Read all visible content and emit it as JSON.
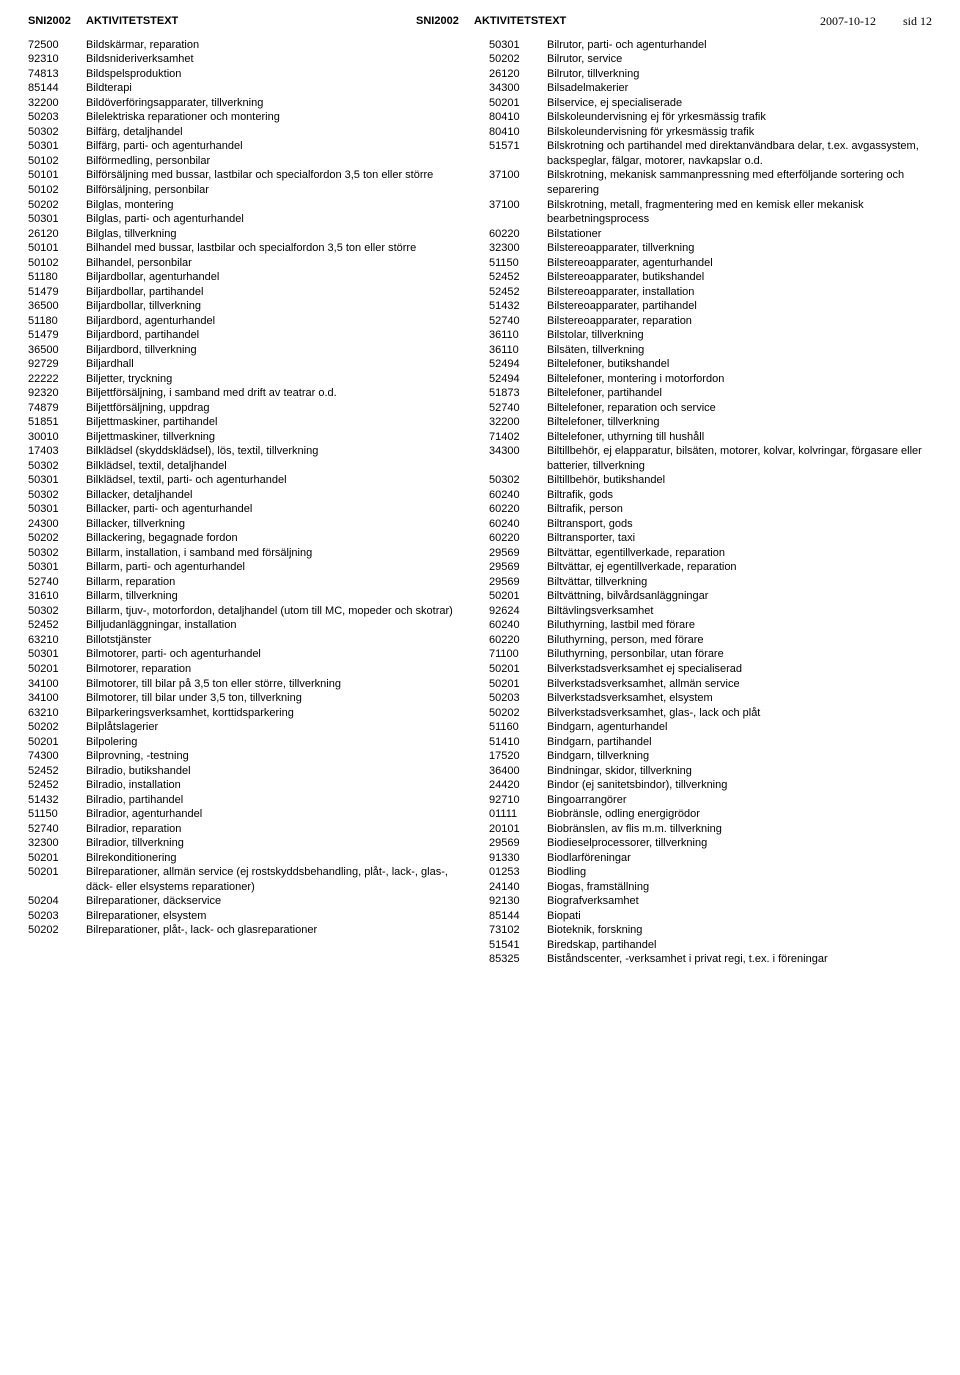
{
  "header": {
    "code_label": "SNI2002",
    "text_label": "AKTIVITETSTEXT",
    "date": "2007-10-12",
    "page": "sid 12"
  },
  "left": [
    {
      "c": "72500",
      "t": "Bildskärmar, reparation"
    },
    {
      "c": "92310",
      "t": "Bildsnideriverksamhet"
    },
    {
      "c": "74813",
      "t": "Bildspelsproduktion"
    },
    {
      "c": "85144",
      "t": "Bildterapi"
    },
    {
      "c": "32200",
      "t": "Bildöverföringsapparater, tillverkning"
    },
    {
      "c": "50203",
      "t": "Bilelektriska reparationer och montering"
    },
    {
      "c": "50302",
      "t": "Bilfärg, detaljhandel"
    },
    {
      "c": "50301",
      "t": "Bilfärg, parti- och agenturhandel"
    },
    {
      "c": "50102",
      "t": "Bilförmedling, personbilar"
    },
    {
      "c": "50101",
      "t": "Bilförsäljning med bussar, lastbilar och specialfordon 3,5 ton eller större"
    },
    {
      "c": "50102",
      "t": "Bilförsäljning, personbilar"
    },
    {
      "c": "50202",
      "t": "Bilglas, montering"
    },
    {
      "c": "50301",
      "t": "Bilglas, parti- och agenturhandel"
    },
    {
      "c": "26120",
      "t": "Bilglas, tillverkning"
    },
    {
      "c": "50101",
      "t": "Bilhandel med bussar, lastbilar och specialfordon 3,5 ton eller större"
    },
    {
      "c": "50102",
      "t": "Bilhandel, personbilar"
    },
    {
      "c": "51180",
      "t": "Biljardbollar, agenturhandel"
    },
    {
      "c": "51479",
      "t": "Biljardbollar, partihandel"
    },
    {
      "c": "36500",
      "t": "Biljardbollar, tillverkning"
    },
    {
      "c": "51180",
      "t": "Biljardbord, agenturhandel"
    },
    {
      "c": "51479",
      "t": "Biljardbord, partihandel"
    },
    {
      "c": "36500",
      "t": "Biljardbord, tillverkning"
    },
    {
      "c": "92729",
      "t": "Biljardhall"
    },
    {
      "c": "22222",
      "t": "Biljetter, tryckning"
    },
    {
      "c": "92320",
      "t": "Biljettförsäljning, i samband med drift av teatrar o.d."
    },
    {
      "c": "74879",
      "t": "Biljettförsäljning, uppdrag"
    },
    {
      "c": "51851",
      "t": "Biljettmaskiner, partihandel"
    },
    {
      "c": "30010",
      "t": "Biljettmaskiner, tillverkning"
    },
    {
      "c": "17403",
      "t": "Bilklädsel (skyddsklädsel), lös, textil, tillverkning"
    },
    {
      "c": "50302",
      "t": "Bilklädsel, textil, detaljhandel"
    },
    {
      "c": "50301",
      "t": "Bilklädsel, textil, parti- och agenturhandel"
    },
    {
      "c": "50302",
      "t": "Billacker, detaljhandel"
    },
    {
      "c": "50301",
      "t": "Billacker, parti- och agenturhandel"
    },
    {
      "c": "24300",
      "t": "Billacker, tillverkning"
    },
    {
      "c": "50202",
      "t": "Billackering, begagnade fordon"
    },
    {
      "c": "50302",
      "t": "Billarm, installation, i samband med försäljning"
    },
    {
      "c": "50301",
      "t": "Billarm, parti- och agenturhandel"
    },
    {
      "c": "52740",
      "t": "Billarm, reparation"
    },
    {
      "c": "31610",
      "t": "Billarm, tillverkning"
    },
    {
      "c": "50302",
      "t": "Billarm, tjuv-, motorfordon, detaljhandel (utom till MC, mopeder och skotrar)"
    },
    {
      "c": "52452",
      "t": "Billjudanläggningar, installation"
    },
    {
      "c": "63210",
      "t": "Billotstjänster"
    },
    {
      "c": "50301",
      "t": "Bilmotorer, parti- och agenturhandel"
    },
    {
      "c": "50201",
      "t": "Bilmotorer, reparation"
    },
    {
      "c": "34100",
      "t": "Bilmotorer, till bilar på 3,5 ton eller större, tillverkning"
    },
    {
      "c": "34100",
      "t": "Bilmotorer, till bilar under 3,5 ton, tillverkning"
    },
    {
      "c": "63210",
      "t": "Bilparkeringsverksamhet, korttidsparkering"
    },
    {
      "c": "50202",
      "t": "Bilplåtslagerier"
    },
    {
      "c": "50201",
      "t": "Bilpolering"
    },
    {
      "c": "74300",
      "t": "Bilprovning, -testning"
    },
    {
      "c": "52452",
      "t": "Bilradio, butikshandel"
    },
    {
      "c": "52452",
      "t": "Bilradio, installation"
    },
    {
      "c": "51432",
      "t": "Bilradio, partihandel"
    },
    {
      "c": "51150",
      "t": "Bilradior, agenturhandel"
    },
    {
      "c": "52740",
      "t": "Bilradior, reparation"
    },
    {
      "c": "32300",
      "t": "Bilradior, tillverkning"
    },
    {
      "c": "50201",
      "t": "Bilrekonditionering"
    },
    {
      "c": "50201",
      "t": "Bilreparationer, allmän service (ej rostskyddsbehandling, plåt-, lack-, glas-, däck- eller elsystems reparationer)"
    },
    {
      "c": "50204",
      "t": "Bilreparationer, däckservice"
    },
    {
      "c": "50203",
      "t": "Bilreparationer, elsystem"
    },
    {
      "c": "50202",
      "t": "Bilreparationer, plåt-, lack- och glasreparationer"
    }
  ],
  "right": [
    {
      "c": "50301",
      "t": "Bilrutor, parti- och agenturhandel"
    },
    {
      "c": "50202",
      "t": "Bilrutor, service"
    },
    {
      "c": "26120",
      "t": "Bilrutor, tillverkning"
    },
    {
      "c": "34300",
      "t": "Bilsadelmakerier"
    },
    {
      "c": "50201",
      "t": "Bilservice, ej specialiserade"
    },
    {
      "c": "80410",
      "t": "Bilskoleundervisning ej för yrkesmässig trafik"
    },
    {
      "c": "80410",
      "t": "Bilskoleundervisning för yrkesmässig trafik"
    },
    {
      "c": "51571",
      "t": "Bilskrotning och partihandel med direktanvändbara delar, t.ex. avgassystem, backspeglar, fälgar, motorer, navkapslar o.d."
    },
    {
      "c": "37100",
      "t": "Bilskrotning, mekanisk sammanpressning med efterföljande sortering och separering"
    },
    {
      "c": "37100",
      "t": "Bilskrotning, metall, fragmentering med en kemisk eller mekanisk bearbetningsprocess"
    },
    {
      "c": "60220",
      "t": "Bilstationer"
    },
    {
      "c": "32300",
      "t": "Bilstereoapparater, tillverkning"
    },
    {
      "c": "51150",
      "t": "Bilstereoapparater, agenturhandel"
    },
    {
      "c": "52452",
      "t": "Bilstereoapparater, butikshandel"
    },
    {
      "c": "52452",
      "t": "Bilstereoapparater, installation"
    },
    {
      "c": "51432",
      "t": "Bilstereoapparater, partihandel"
    },
    {
      "c": "52740",
      "t": "Bilstereoapparater, reparation"
    },
    {
      "c": "36110",
      "t": "Bilstolar, tillverkning"
    },
    {
      "c": "36110",
      "t": "Bilsäten, tillverkning"
    },
    {
      "c": "52494",
      "t": "Biltelefoner, butikshandel"
    },
    {
      "c": "52494",
      "t": "Biltelefoner, montering i motorfordon"
    },
    {
      "c": "51873",
      "t": "Biltelefoner, partihandel"
    },
    {
      "c": "52740",
      "t": "Biltelefoner, reparation och service"
    },
    {
      "c": "32200",
      "t": "Biltelefoner, tillverkning"
    },
    {
      "c": "71402",
      "t": "Biltelefoner, uthyrning till hushåll"
    },
    {
      "c": "34300",
      "t": "Biltillbehör, ej elapparatur, bilsäten, motorer, kolvar, kolvringar, förgasare eller batterier, tillverkning"
    },
    {
      "c": "50302",
      "t": "Biltillbehör, butikshandel"
    },
    {
      "c": "60240",
      "t": "Biltrafik, gods"
    },
    {
      "c": "60220",
      "t": "Biltrafik, person"
    },
    {
      "c": "60240",
      "t": "Biltransport, gods"
    },
    {
      "c": "60220",
      "t": "Biltransporter, taxi"
    },
    {
      "c": "29569",
      "t": "Biltvättar, egentillverkade, reparation"
    },
    {
      "c": "29569",
      "t": "Biltvättar, ej egentillverkade, reparation"
    },
    {
      "c": "29569",
      "t": "Biltvättar, tillverkning"
    },
    {
      "c": "50201",
      "t": "Biltvättning, bilvårdsanläggningar"
    },
    {
      "c": "92624",
      "t": "Biltävlingsverksamhet"
    },
    {
      "c": "60240",
      "t": "Biluthyrning, lastbil med förare"
    },
    {
      "c": "60220",
      "t": "Biluthyrning, person, med förare"
    },
    {
      "c": "71100",
      "t": "Biluthyrning, personbilar, utan förare"
    },
    {
      "c": "50201",
      "t": "Bilverkstadsverksamhet ej specialiserad"
    },
    {
      "c": "50201",
      "t": "Bilverkstadsverksamhet, allmän service"
    },
    {
      "c": "50203",
      "t": "Bilverkstadsverksamhet, elsystem"
    },
    {
      "c": "50202",
      "t": "Bilverkstadsverksamhet, glas-, lack och plåt"
    },
    {
      "c": "51160",
      "t": "Bindgarn, agenturhandel"
    },
    {
      "c": "51410",
      "t": "Bindgarn, partihandel"
    },
    {
      "c": "17520",
      "t": "Bindgarn, tillverkning"
    },
    {
      "c": "36400",
      "t": "Bindningar, skidor, tillverkning"
    },
    {
      "c": "24420",
      "t": "Bindor (ej sanitetsbindor), tillverkning"
    },
    {
      "c": "92710",
      "t": "Bingoarrangörer"
    },
    {
      "c": "01111",
      "t": "Biobränsle, odling energigrödor"
    },
    {
      "c": "20101",
      "t": "Biobränslen, av flis m.m. tillverkning"
    },
    {
      "c": "29569",
      "t": "Biodieselprocessorer, tillverkning"
    },
    {
      "c": "91330",
      "t": "Biodlarföreningar"
    },
    {
      "c": "01253",
      "t": "Biodling"
    },
    {
      "c": "24140",
      "t": "Biogas, framställning"
    },
    {
      "c": "92130",
      "t": "Biografverksamhet"
    },
    {
      "c": "85144",
      "t": "Biopati"
    },
    {
      "c": "73102",
      "t": "Bioteknik, forskning"
    },
    {
      "c": "51541",
      "t": "Biredskap, partihandel"
    },
    {
      "c": "85325",
      "t": "Biståndscenter, -verksamhet i privat regi, t.ex. i föreningar"
    }
  ]
}
